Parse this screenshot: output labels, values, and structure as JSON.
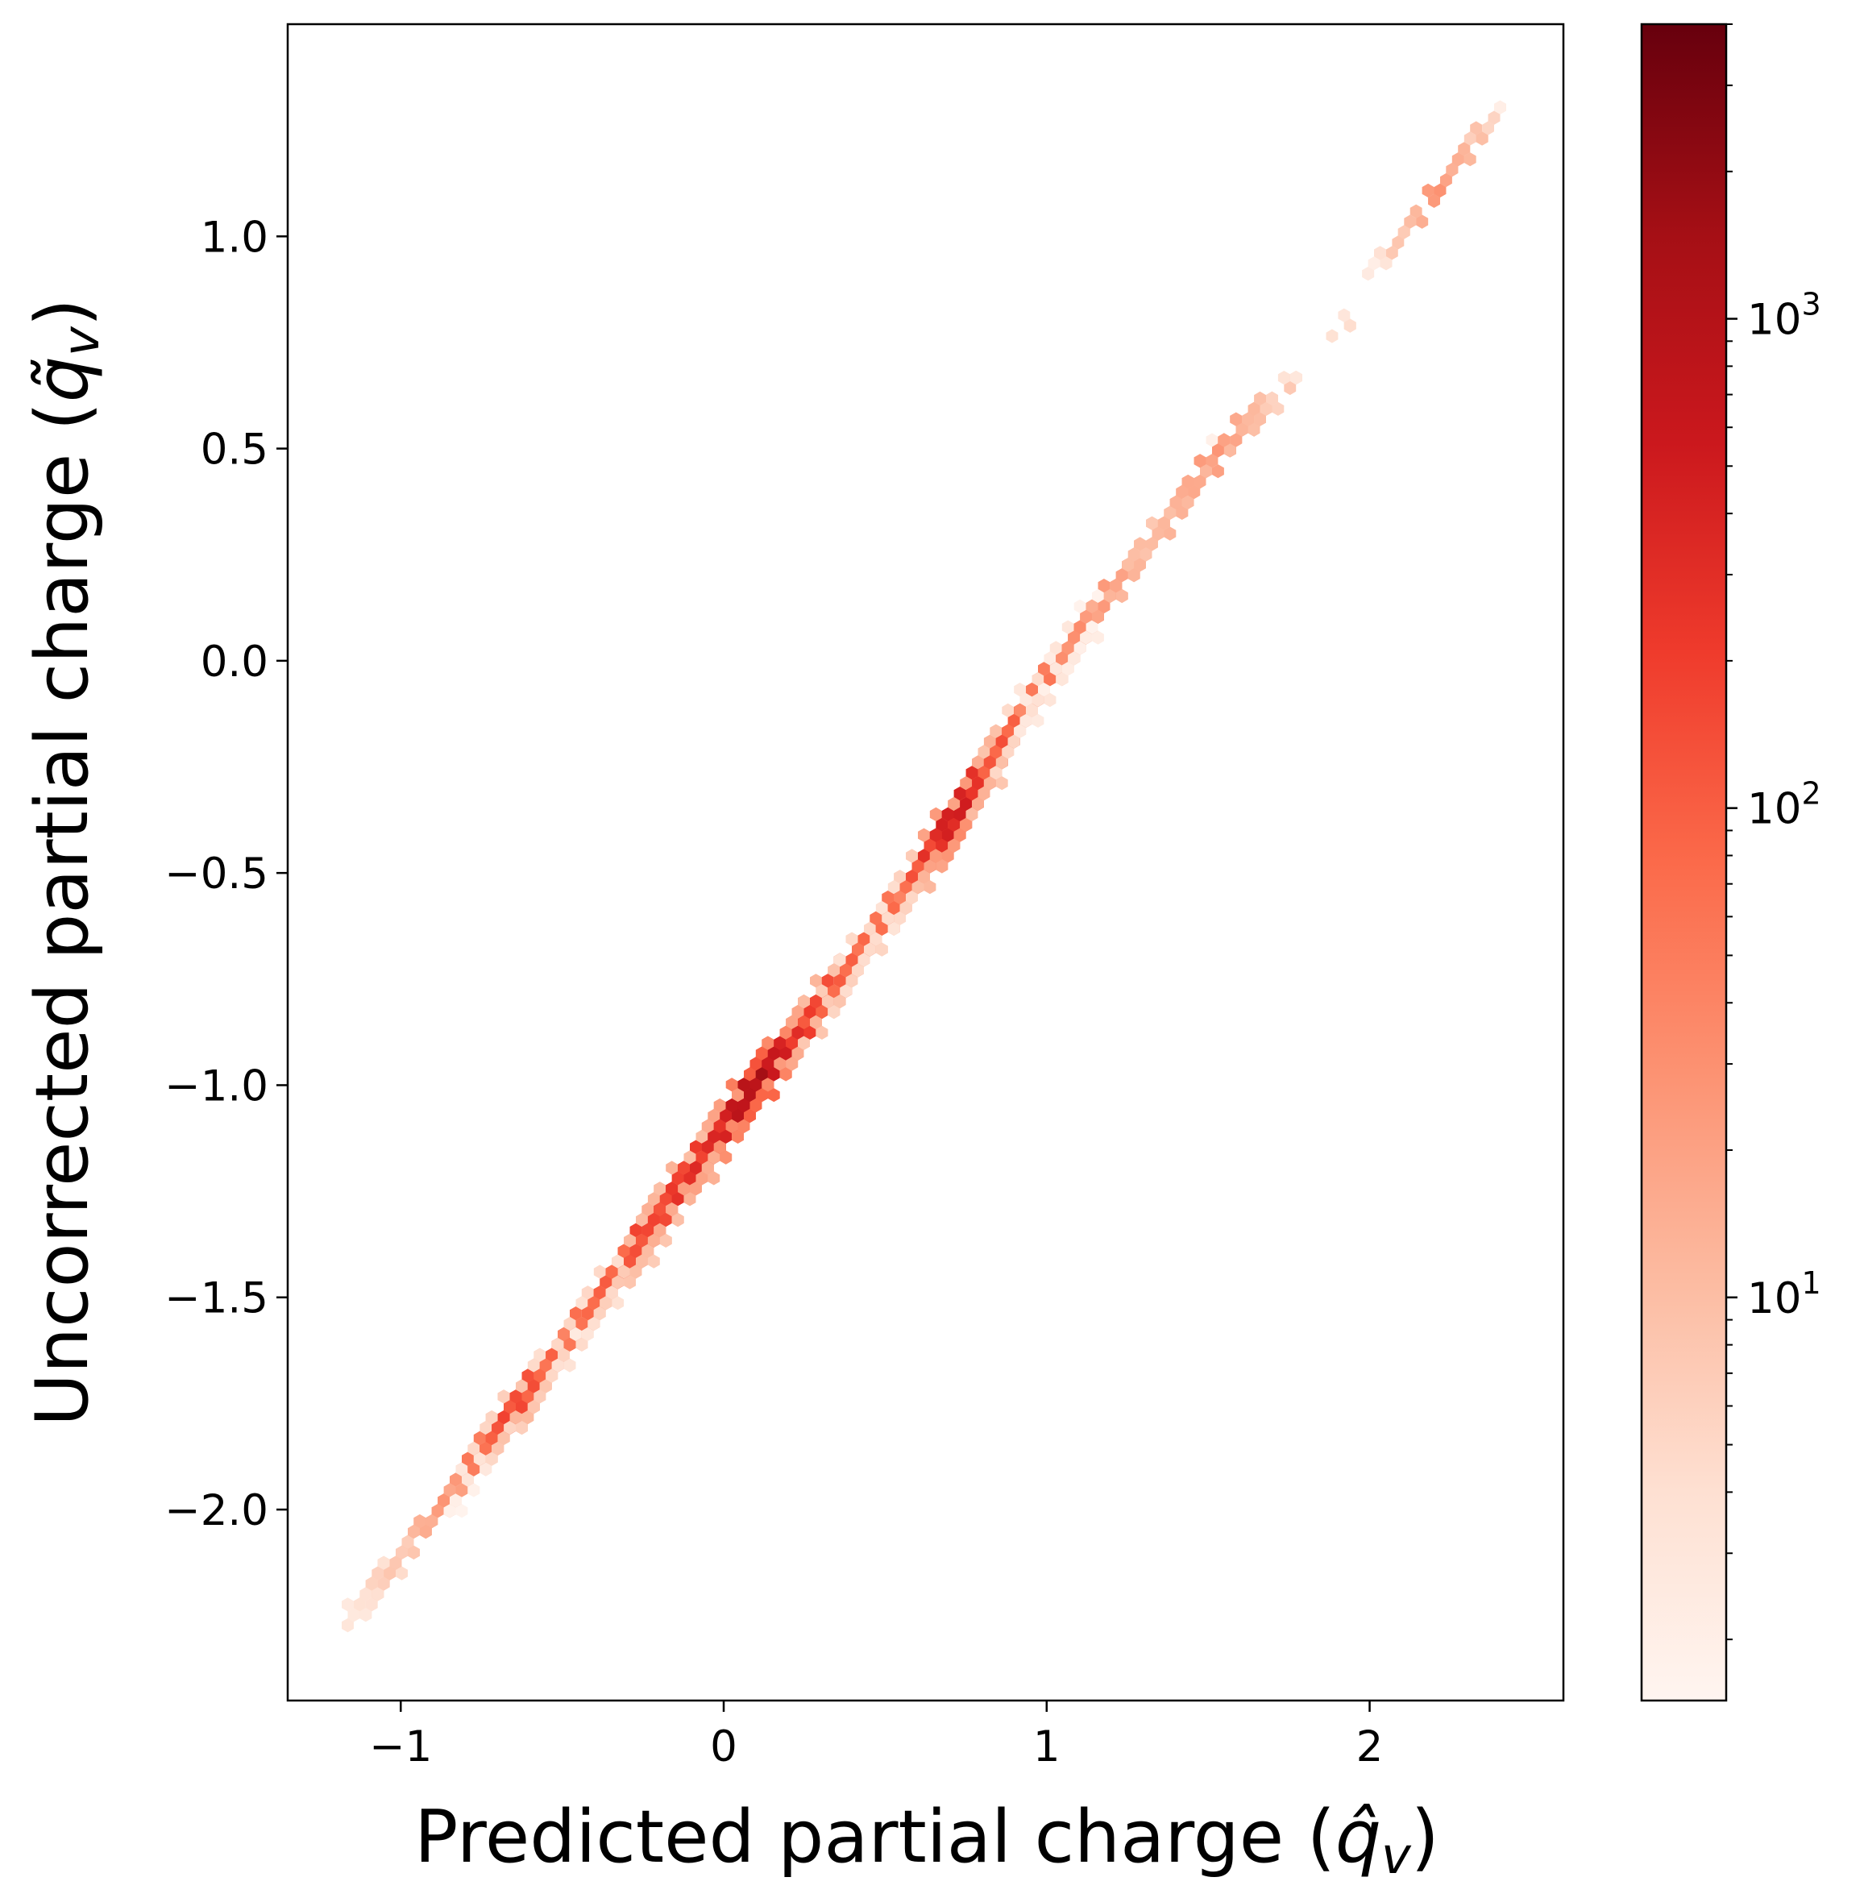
{
  "chart_data": {
    "type": "hexbin",
    "xlabel_main": "Predicted partial charge (",
    "xlabel_math": "q̂",
    "xlabel_sub": "v",
    "xlabel_close": ")",
    "ylabel_main": "Uncorrected partial charge (",
    "ylabel_math": "q̃",
    "ylabel_sub": "v",
    "ylabel_close": ")",
    "xlim": [
      -1.35,
      2.6
    ],
    "ylim": [
      -2.45,
      1.5
    ],
    "xticks": [
      {
        "value": -1,
        "label": "−1"
      },
      {
        "value": 0,
        "label": "0"
      },
      {
        "value": 1,
        "label": "1"
      },
      {
        "value": 2,
        "label": "2"
      }
    ],
    "yticks": [
      {
        "value": 1.0,
        "label": "1.0"
      },
      {
        "value": 0.5,
        "label": "0.5"
      },
      {
        "value": 0.0,
        "label": "0.0"
      },
      {
        "value": -0.5,
        "label": "−0.5"
      },
      {
        "value": -1.0,
        "label": "−1.0"
      },
      {
        "value": -1.5,
        "label": "−1.5"
      },
      {
        "value": -2.0,
        "label": "−2.0"
      }
    ],
    "colorbar": {
      "scale": "log",
      "range": [
        1.5,
        4000
      ],
      "colormap": "Reds",
      "ticks": [
        {
          "value": 10,
          "base": "10",
          "exp": "1"
        },
        {
          "value": 100,
          "base": "10",
          "exp": "2"
        },
        {
          "value": 1000,
          "base": "10",
          "exp": "3"
        }
      ]
    },
    "density_profile": [
      {
        "x": -1.18,
        "y": -2.27,
        "count": 3
      },
      {
        "x": -1.05,
        "y": -2.15,
        "count": 8
      },
      {
        "x": -0.95,
        "y": -2.05,
        "count": 15
      },
      {
        "x": -0.85,
        "y": -1.97,
        "count": 30
      },
      {
        "x": -0.75,
        "y": -1.86,
        "count": 100
      },
      {
        "x": -0.65,
        "y": -1.76,
        "count": 200
      },
      {
        "x": -0.55,
        "y": -1.66,
        "count": 120
      },
      {
        "x": -0.45,
        "y": -1.56,
        "count": 80
      },
      {
        "x": -0.35,
        "y": -1.46,
        "count": 120
      },
      {
        "x": -0.25,
        "y": -1.36,
        "count": 220
      },
      {
        "x": -0.15,
        "y": -1.25,
        "count": 300
      },
      {
        "x": -0.05,
        "y": -1.15,
        "count": 380
      },
      {
        "x": 0.05,
        "y": -1.05,
        "count": 900
      },
      {
        "x": 0.1,
        "y": -0.99,
        "count": 2500
      },
      {
        "x": 0.15,
        "y": -0.95,
        "count": 1000
      },
      {
        "x": 0.25,
        "y": -0.85,
        "count": 250
      },
      {
        "x": 0.35,
        "y": -0.75,
        "count": 150
      },
      {
        "x": 0.45,
        "y": -0.65,
        "count": 100
      },
      {
        "x": 0.55,
        "y": -0.55,
        "count": 80
      },
      {
        "x": 0.65,
        "y": -0.43,
        "count": 400
      },
      {
        "x": 0.72,
        "y": -0.37,
        "count": 700
      },
      {
        "x": 0.8,
        "y": -0.27,
        "count": 250
      },
      {
        "x": 0.9,
        "y": -0.15,
        "count": 100
      },
      {
        "x": 1.0,
        "y": -0.04,
        "count": 60
      },
      {
        "x": 1.1,
        "y": 0.07,
        "count": 40
      },
      {
        "x": 1.2,
        "y": 0.17,
        "count": 25
      },
      {
        "x": 1.3,
        "y": 0.27,
        "count": 12
      },
      {
        "x": 1.4,
        "y": 0.37,
        "count": 15
      },
      {
        "x": 1.5,
        "y": 0.47,
        "count": 30
      },
      {
        "x": 1.6,
        "y": 0.55,
        "count": 20
      },
      {
        "x": 1.7,
        "y": 0.62,
        "count": 8
      },
      {
        "x": 1.8,
        "y": 0.68,
        "count": 3
      },
      {
        "x": 1.9,
        "y": 0.78,
        "count": 4
      },
      {
        "x": 2.0,
        "y": 0.92,
        "count": 3
      },
      {
        "x": 2.08,
        "y": 0.99,
        "count": 8
      },
      {
        "x": 2.15,
        "y": 1.05,
        "count": 15
      },
      {
        "x": 2.2,
        "y": 1.1,
        "count": 25
      },
      {
        "x": 2.3,
        "y": 1.22,
        "count": 10
      },
      {
        "x": 2.42,
        "y": 1.31,
        "count": 3
      }
    ]
  }
}
